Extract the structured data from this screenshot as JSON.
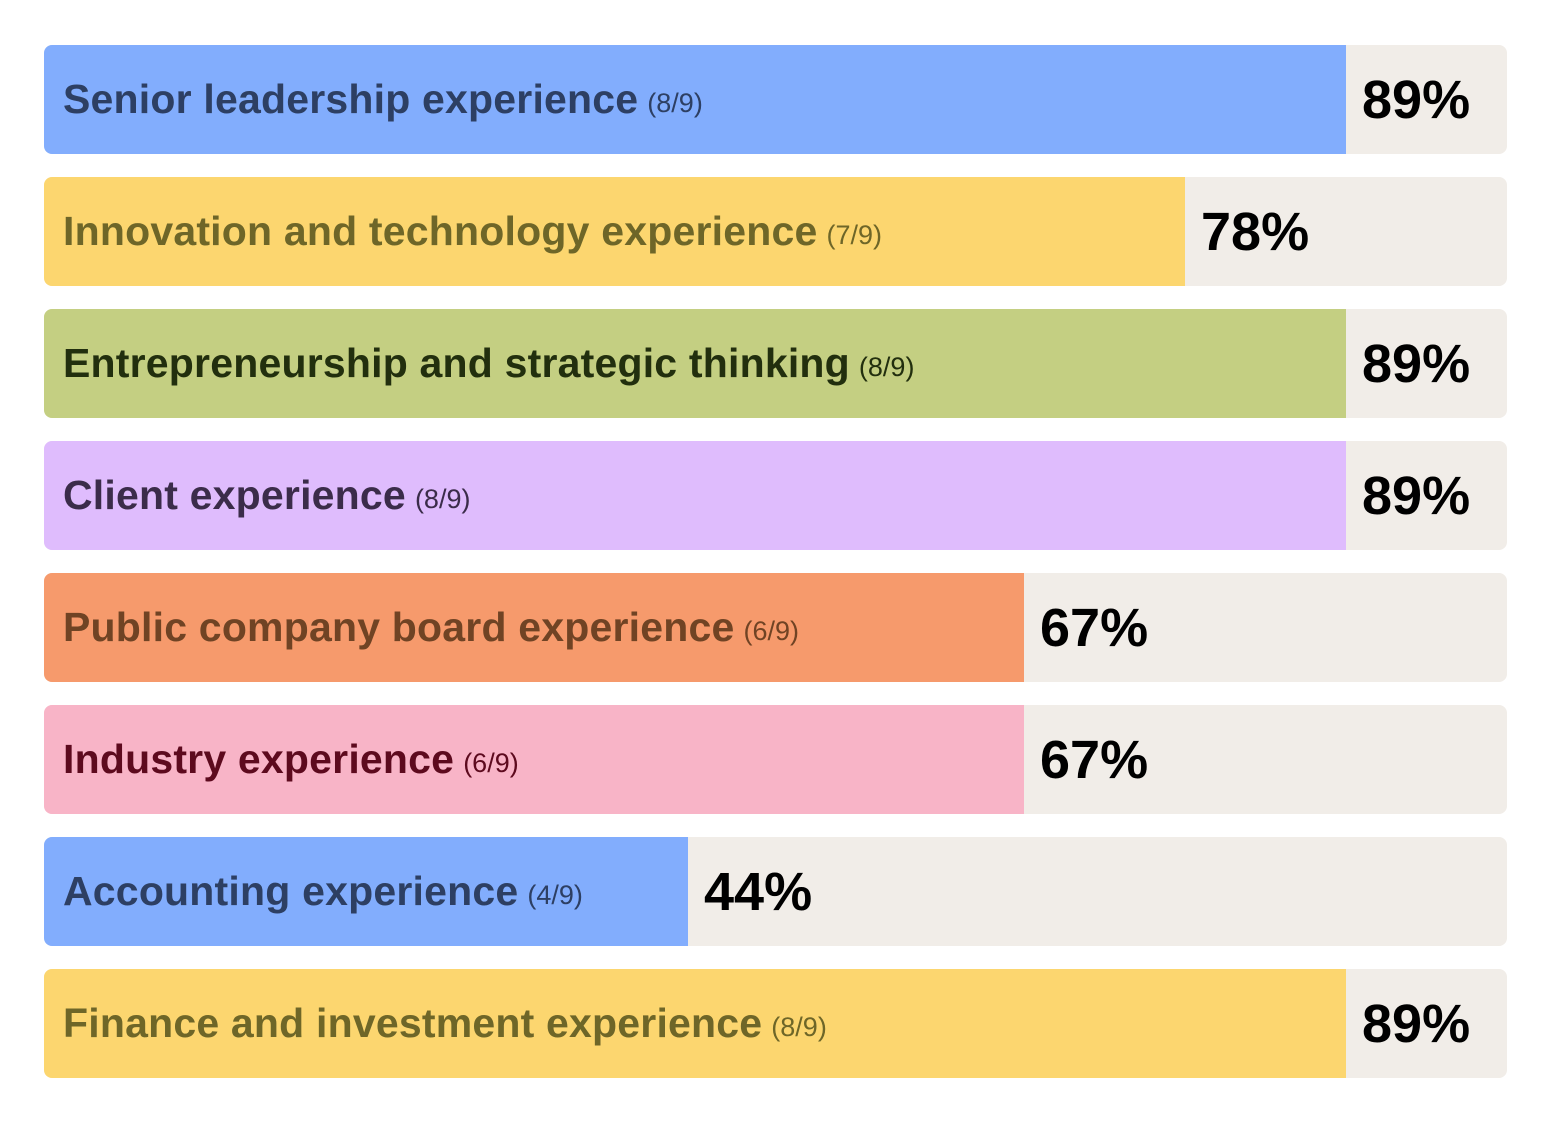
{
  "chart_data": {
    "type": "bar",
    "orientation": "horizontal",
    "xlim": [
      0,
      100
    ],
    "bars": [
      {
        "label": "Senior leadership experience",
        "count": "(8/9)",
        "value": 89,
        "value_label": "89%",
        "color": "#82adfd",
        "text_color": "#2d3f63"
      },
      {
        "label": "Innovation and technology experience",
        "count": "(7/9)",
        "value": 78,
        "value_label": "78%",
        "color": "#fcd66f",
        "text_color": "#6e6628"
      },
      {
        "label": "Entrepreneurship and strategic thinking",
        "count": "(8/9)",
        "value": 89,
        "value_label": "89%",
        "color": "#c4cf82",
        "text_color": "#222f0e"
      },
      {
        "label": "Client experience",
        "count": "(8/9)",
        "value": 89,
        "value_label": "89%",
        "color": "#dfbcfd",
        "text_color": "#3b2c4a"
      },
      {
        "label": "Public company board experience",
        "count": "(6/9)",
        "value": 67,
        "value_label": "67%",
        "color": "#f69a6c",
        "text_color": "#704324"
      },
      {
        "label": "Industry experience",
        "count": "(6/9)",
        "value": 67,
        "value_label": "67%",
        "color": "#f8b4c7",
        "text_color": "#5d0a1e"
      },
      {
        "label": "Accounting experience",
        "count": "(4/9)",
        "value": 44,
        "value_label": "44%",
        "color": "#82adfd",
        "text_color": "#2d3f63"
      },
      {
        "label": "Finance and investment experience",
        "count": "(8/9)",
        "value": 89,
        "value_label": "89%",
        "color": "#fcd66f",
        "text_color": "#6e6628"
      }
    ],
    "track_color": "#f1ede8"
  }
}
